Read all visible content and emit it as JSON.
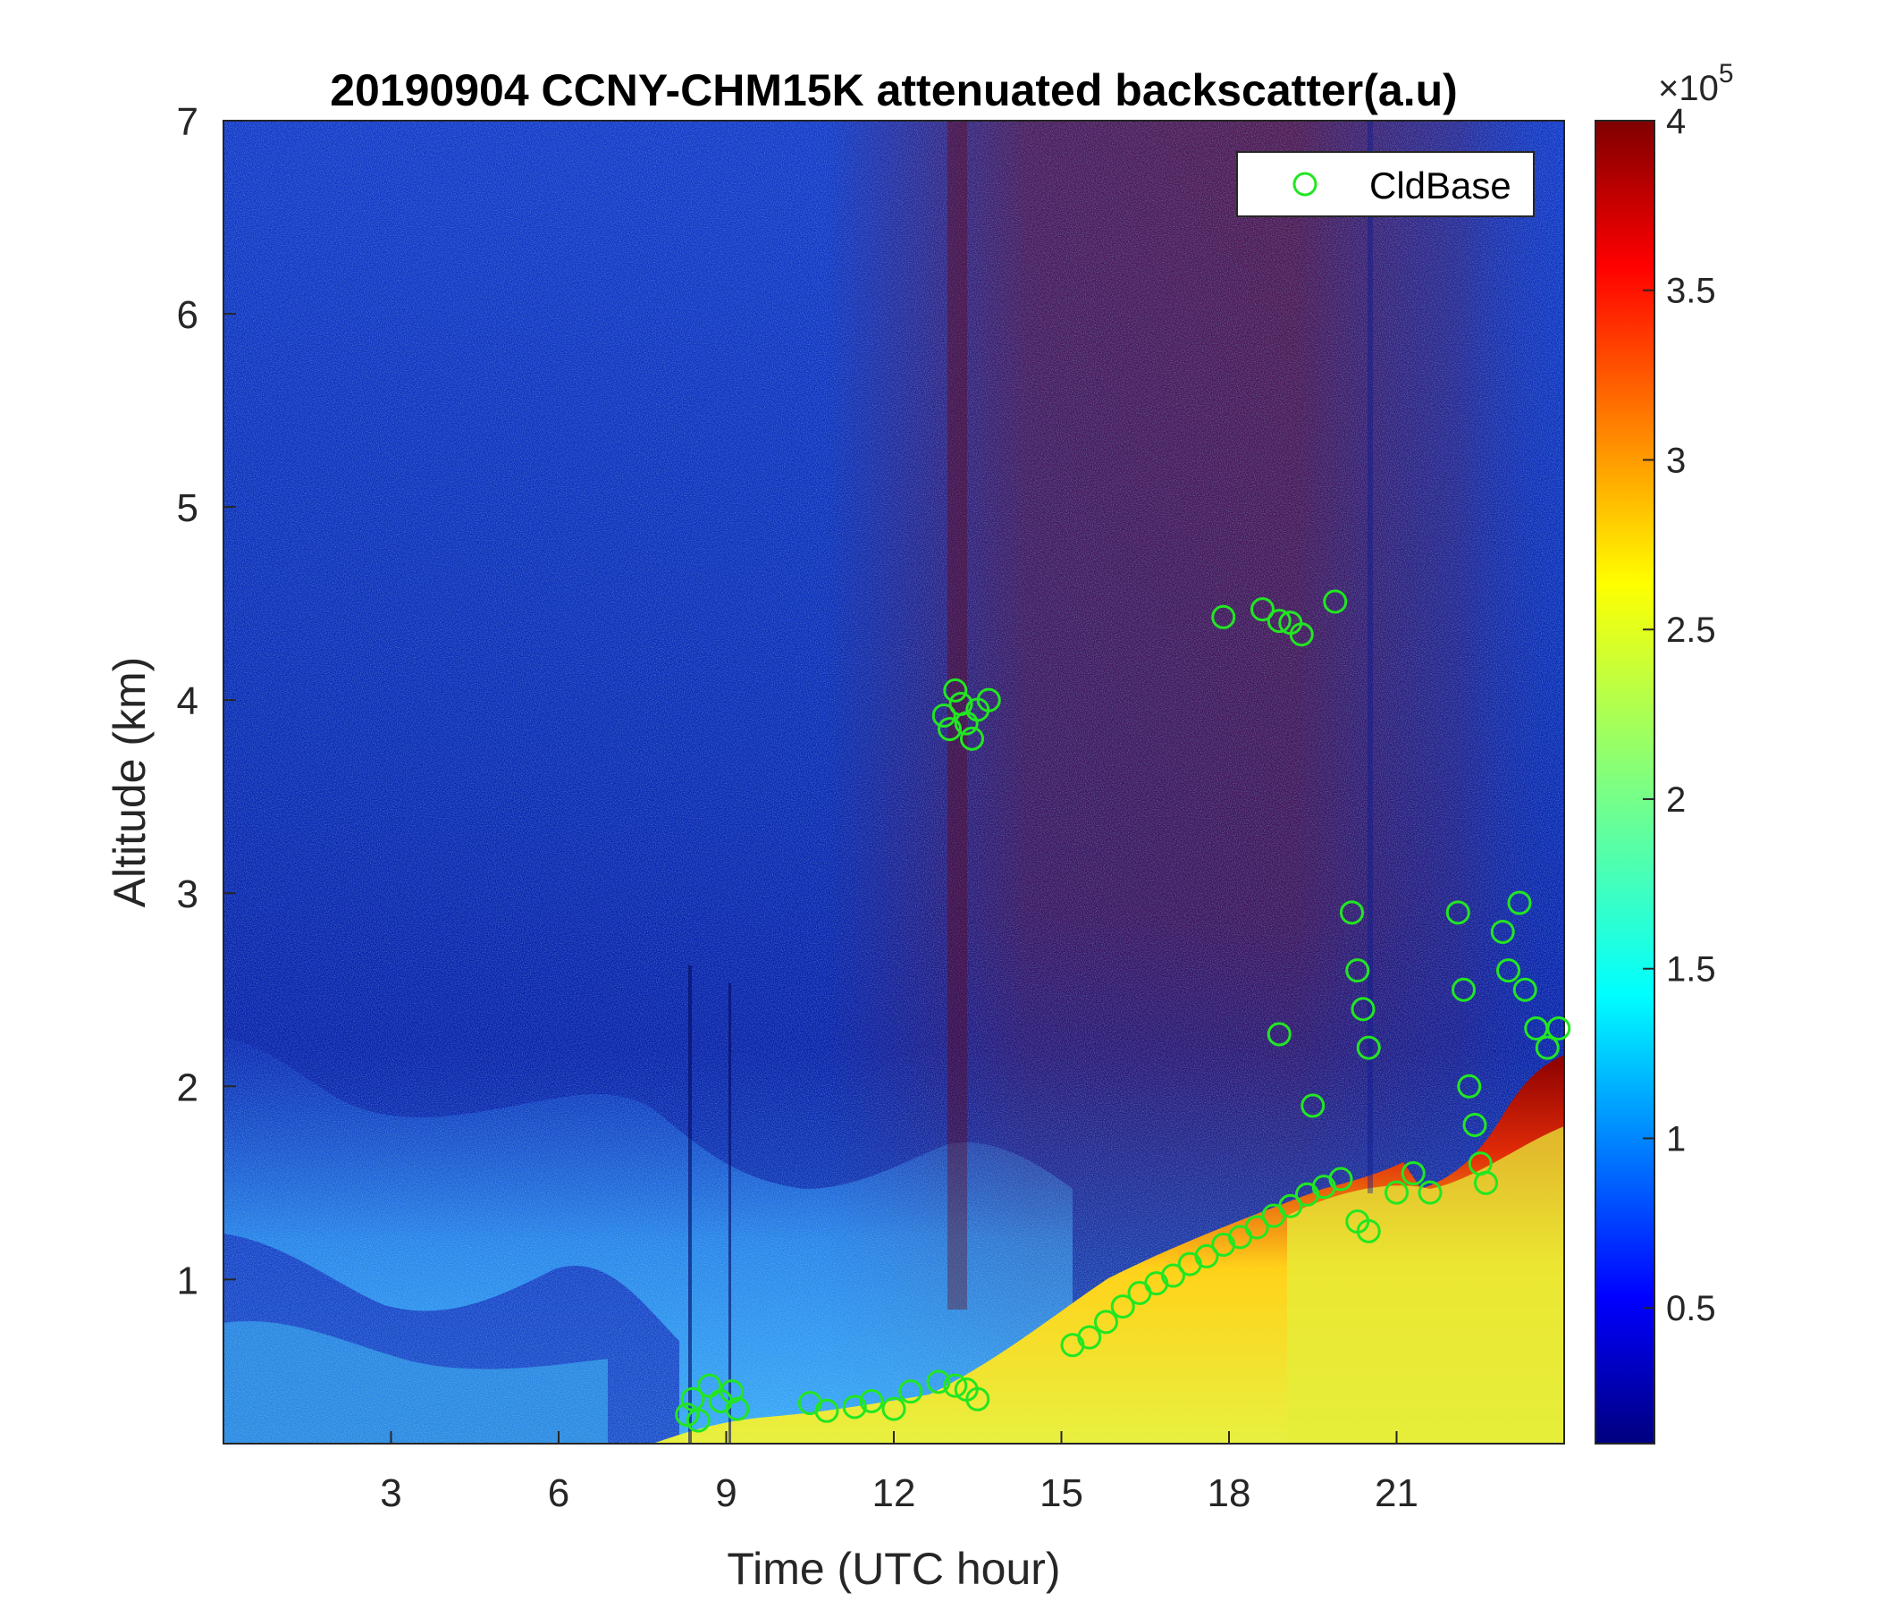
{
  "chart_data": {
    "type": "heatmap",
    "title": "20190904 CCNY-CHM15K attenuated backscatter(a.u)",
    "xlabel": "Time (UTC hour)",
    "ylabel": "Altitude (km)",
    "xlim": [
      0,
      24
    ],
    "ylim": [
      0.15,
      7
    ],
    "xticks": [
      3,
      6,
      9,
      12,
      15,
      18,
      21
    ],
    "yticks": [
      1,
      2,
      3,
      4,
      5,
      6,
      7
    ],
    "colorbar": {
      "range": [
        0.1,
        4
      ],
      "ticks": [
        0.5,
        1,
        1.5,
        2,
        2.5,
        3,
        3.5,
        4
      ],
      "tick_labels": [
        "0.5",
        "1",
        "1.5",
        "2",
        "2.5",
        "3",
        "3.5",
        "4"
      ],
      "multiplier_base": "×10",
      "multiplier_exp": "5",
      "colormap": "jet"
    },
    "legend": {
      "label": "CldBase",
      "placement": "top-right",
      "marker": "circle",
      "color": "#22e622"
    },
    "cloud_base": [
      {
        "t": 8.3,
        "alt": 0.3
      },
      {
        "t": 8.4,
        "alt": 0.38
      },
      {
        "t": 8.5,
        "alt": 0.27
      },
      {
        "t": 8.7,
        "alt": 0.45
      },
      {
        "t": 8.9,
        "alt": 0.37
      },
      {
        "t": 9.1,
        "alt": 0.42
      },
      {
        "t": 9.2,
        "alt": 0.33
      },
      {
        "t": 10.5,
        "alt": 0.36
      },
      {
        "t": 10.8,
        "alt": 0.32
      },
      {
        "t": 11.3,
        "alt": 0.34
      },
      {
        "t": 11.6,
        "alt": 0.37
      },
      {
        "t": 12.0,
        "alt": 0.33
      },
      {
        "t": 12.3,
        "alt": 0.42
      },
      {
        "t": 12.8,
        "alt": 0.47
      },
      {
        "t": 13.1,
        "alt": 0.45
      },
      {
        "t": 13.3,
        "alt": 0.43
      },
      {
        "t": 13.5,
        "alt": 0.38
      },
      {
        "t": 12.9,
        "alt": 3.92
      },
      {
        "t": 13.0,
        "alt": 3.85
      },
      {
        "t": 13.1,
        "alt": 4.05
      },
      {
        "t": 13.2,
        "alt": 3.98
      },
      {
        "t": 13.3,
        "alt": 3.88
      },
      {
        "t": 13.4,
        "alt": 3.8
      },
      {
        "t": 13.5,
        "alt": 3.95
      },
      {
        "t": 13.7,
        "alt": 4.0
      },
      {
        "t": 17.9,
        "alt": 4.43
      },
      {
        "t": 18.6,
        "alt": 4.47
      },
      {
        "t": 18.9,
        "alt": 4.41
      },
      {
        "t": 19.1,
        "alt": 4.4
      },
      {
        "t": 19.3,
        "alt": 4.34
      },
      {
        "t": 19.9,
        "alt": 4.51
      },
      {
        "t": 15.2,
        "alt": 0.66
      },
      {
        "t": 15.5,
        "alt": 0.7
      },
      {
        "t": 15.8,
        "alt": 0.78
      },
      {
        "t": 16.1,
        "alt": 0.86
      },
      {
        "t": 16.4,
        "alt": 0.93
      },
      {
        "t": 16.7,
        "alt": 0.98
      },
      {
        "t": 17.0,
        "alt": 1.02
      },
      {
        "t": 17.3,
        "alt": 1.08
      },
      {
        "t": 17.6,
        "alt": 1.12
      },
      {
        "t": 17.9,
        "alt": 1.18
      },
      {
        "t": 18.2,
        "alt": 1.22
      },
      {
        "t": 18.5,
        "alt": 1.27
      },
      {
        "t": 18.8,
        "alt": 1.33
      },
      {
        "t": 19.1,
        "alt": 1.38
      },
      {
        "t": 19.4,
        "alt": 1.44
      },
      {
        "t": 19.7,
        "alt": 1.48
      },
      {
        "t": 20.0,
        "alt": 1.52
      },
      {
        "t": 20.3,
        "alt": 1.3
      },
      {
        "t": 20.5,
        "alt": 1.25
      },
      {
        "t": 18.9,
        "alt": 2.27
      },
      {
        "t": 19.5,
        "alt": 1.9
      },
      {
        "t": 20.2,
        "alt": 2.9
      },
      {
        "t": 20.3,
        "alt": 2.6
      },
      {
        "t": 20.4,
        "alt": 2.4
      },
      {
        "t": 20.5,
        "alt": 2.2
      },
      {
        "t": 21.0,
        "alt": 1.45
      },
      {
        "t": 21.3,
        "alt": 1.55
      },
      {
        "t": 21.6,
        "alt": 1.45
      },
      {
        "t": 22.1,
        "alt": 2.9
      },
      {
        "t": 22.2,
        "alt": 2.5
      },
      {
        "t": 22.3,
        "alt": 2.0
      },
      {
        "t": 22.4,
        "alt": 1.8
      },
      {
        "t": 22.5,
        "alt": 1.6
      },
      {
        "t": 22.6,
        "alt": 1.5
      },
      {
        "t": 22.9,
        "alt": 2.8
      },
      {
        "t": 23.0,
        "alt": 2.6
      },
      {
        "t": 23.2,
        "alt": 2.95
      },
      {
        "t": 23.3,
        "alt": 2.5
      },
      {
        "t": 23.5,
        "alt": 2.3
      },
      {
        "t": 23.7,
        "alt": 2.2
      },
      {
        "t": 23.9,
        "alt": 2.3
      }
    ]
  }
}
